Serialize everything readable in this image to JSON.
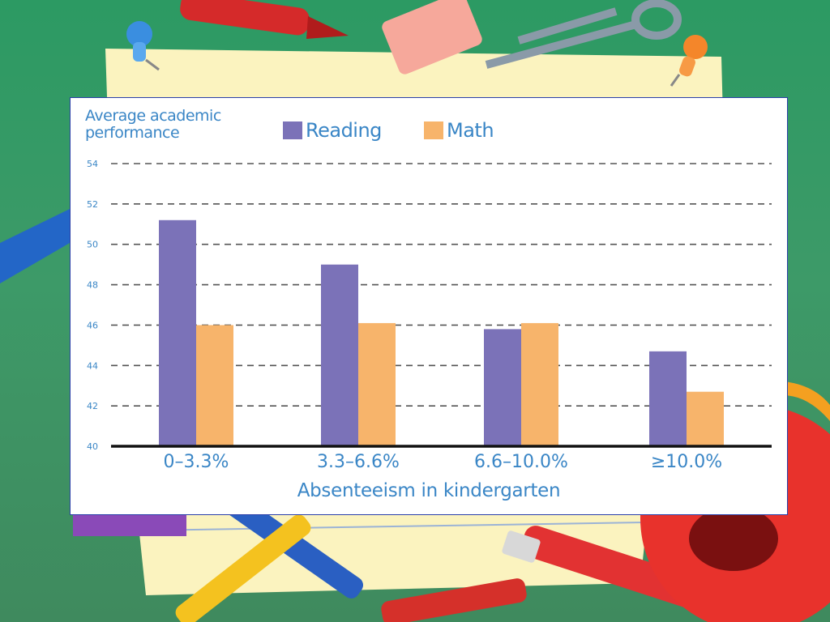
{
  "chart_data": {
    "type": "bar",
    "ylabel": "Average academic\nperformance",
    "xlabel": "Absenteeism in kindergarten",
    "categories": [
      "0–3.3%",
      "3.3–6.6%",
      "6.6–10.0%",
      "≥10.0%"
    ],
    "series": [
      {
        "name": "Reading",
        "color": "#7b72b8",
        "values": [
          51.2,
          49.0,
          45.8,
          44.7
        ]
      },
      {
        "name": "Math",
        "color": "#f7b46b",
        "values": [
          46.0,
          46.1,
          46.1,
          42.7
        ]
      }
    ],
    "ylim": [
      40,
      54
    ],
    "yticks": [
      40,
      42,
      44,
      46,
      48,
      50,
      52,
      54
    ],
    "grid": true,
    "legend": "top"
  }
}
